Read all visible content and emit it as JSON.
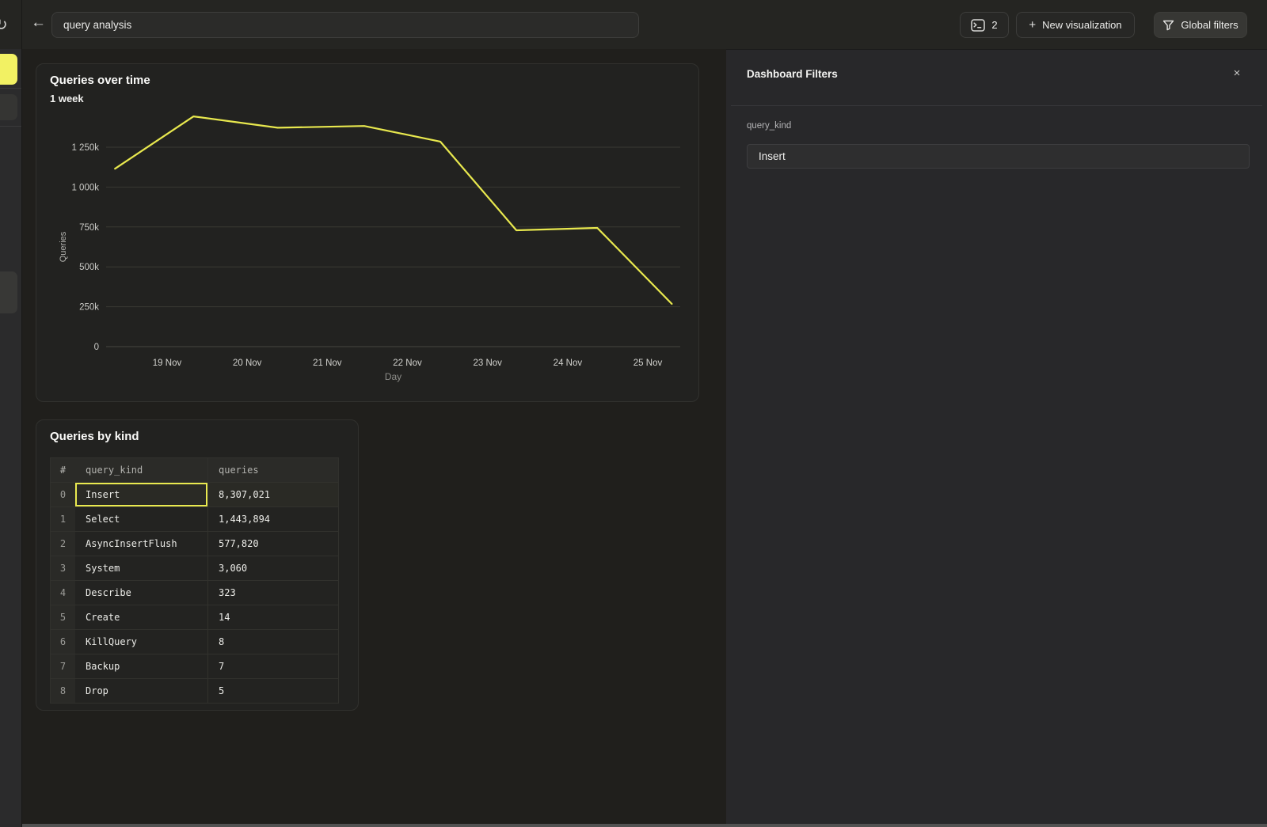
{
  "topbar": {
    "back_icon": "←",
    "refresh_icon": "↻",
    "search_value": "query analysis",
    "console": {
      "count": "2"
    },
    "new_visualization": {
      "plus_icon": "+",
      "label": "New visualization"
    },
    "global_filters": {
      "label": "Global filters"
    }
  },
  "chart_card": {
    "title": "Queries over time",
    "subtitle": "1 week"
  },
  "chart_data": {
    "type": "line",
    "title": "Queries over time",
    "subtitle": "1 week",
    "xlabel": "Day",
    "ylabel": "Queries",
    "x_ticks": [
      "19 Nov",
      "20 Nov",
      "21 Nov",
      "22 Nov",
      "23 Nov",
      "24 Nov",
      "25 Nov"
    ],
    "x_tick_days": [
      19,
      20,
      21,
      22,
      23,
      24,
      25
    ],
    "y_ticks": [
      {
        "value": 0,
        "label": "0"
      },
      {
        "value": 250000,
        "label": "250k"
      },
      {
        "value": 500000,
        "label": "500k"
      },
      {
        "value": 750000,
        "label": "750k"
      },
      {
        "value": 1000000,
        "label": "1 000k"
      },
      {
        "value": 1250000,
        "label": "1 250k"
      }
    ],
    "ylim": [
      0,
      1500000
    ],
    "grid": true,
    "legend": "none",
    "line_color": "#e8e84e",
    "series": [
      {
        "name": "Queries",
        "points": [
          [
            18.35,
            1115000
          ],
          [
            19.33,
            1443000
          ],
          [
            20.38,
            1372000
          ],
          [
            21.46,
            1383000
          ],
          [
            22.41,
            1285000
          ],
          [
            23.36,
            729000
          ],
          [
            24.37,
            744000
          ],
          [
            25.3,
            268000
          ]
        ]
      }
    ]
  },
  "table_card": {
    "title": "Queries by kind",
    "columns": [
      "#",
      "query_kind",
      "queries"
    ],
    "rows": [
      {
        "index": "0",
        "query_kind": "Insert",
        "queries": "8,307,021",
        "selected": true
      },
      {
        "index": "1",
        "query_kind": "Select",
        "queries": "1,443,894",
        "selected": false
      },
      {
        "index": "2",
        "query_kind": "AsyncInsertFlush",
        "queries": "577,820",
        "selected": false
      },
      {
        "index": "3",
        "query_kind": "System",
        "queries": "3,060",
        "selected": false
      },
      {
        "index": "4",
        "query_kind": "Describe",
        "queries": "323",
        "selected": false
      },
      {
        "index": "5",
        "query_kind": "Create",
        "queries": "14",
        "selected": false
      },
      {
        "index": "6",
        "query_kind": "KillQuery",
        "queries": "8",
        "selected": false
      },
      {
        "index": "7",
        "query_kind": "Backup",
        "queries": "7",
        "selected": false
      },
      {
        "index": "8",
        "query_kind": "Drop",
        "queries": "5",
        "selected": false
      }
    ]
  },
  "filters_panel": {
    "title": "Dashboard Filters",
    "close_icon": "×",
    "fields": [
      {
        "label": "query_kind",
        "value": "Insert"
      }
    ]
  },
  "colors": {
    "accent_yellow": "#e8e84e",
    "sidebar_active_yellow": "#f2f163",
    "panel_bg": "#28282a",
    "main_bg": "#201f1c",
    "card_border": "#31312e"
  }
}
